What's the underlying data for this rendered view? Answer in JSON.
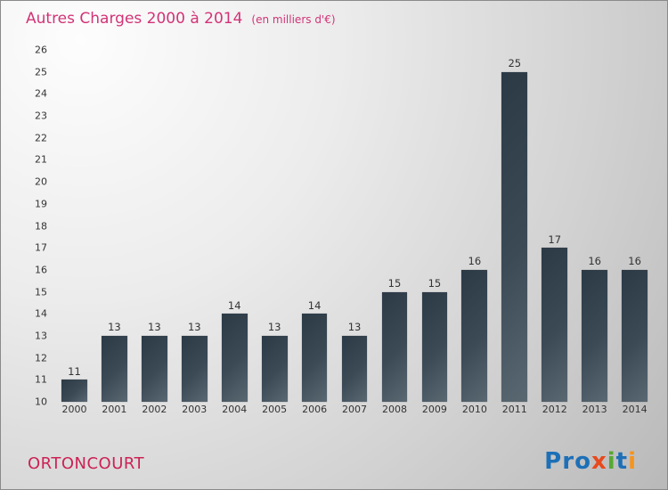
{
  "header": {
    "title": "Autres Charges 2000 à 2014",
    "subtitle": "(en milliers d'€)"
  },
  "footer": {
    "org_name": "ORTONCOURT",
    "logo_letters": [
      {
        "ch": "P",
        "color": "#1d70b7"
      },
      {
        "ch": "r",
        "color": "#1d70b7"
      },
      {
        "ch": "o",
        "color": "#1d70b7"
      },
      {
        "ch": "x",
        "color": "#e8491d"
      },
      {
        "ch": "i",
        "color": "#56a832"
      },
      {
        "ch": "t",
        "color": "#1d70b7"
      },
      {
        "ch": "i",
        "color": "#f7941d"
      }
    ]
  },
  "colors": {
    "title": "#d23377",
    "org_name": "#cc2255",
    "bar_gradient_start": "#2c3a46",
    "bar_gradient_end": "#5a6872",
    "axis_text": "#333333"
  },
  "chart_data": {
    "type": "bar",
    "title": "Autres Charges 2000 à 2014",
    "subtitle": "(en milliers d'€)",
    "categories": [
      "2000",
      "2001",
      "2002",
      "2003",
      "2004",
      "2005",
      "2006",
      "2007",
      "2008",
      "2009",
      "2010",
      "2011",
      "2012",
      "2013",
      "2014"
    ],
    "values": [
      11,
      13,
      13,
      13,
      14,
      13,
      14,
      13,
      15,
      15,
      16,
      25,
      17,
      16,
      16
    ],
    "xlabel": "",
    "ylabel": "",
    "ylim": [
      10,
      26
    ],
    "ytick_step": 1,
    "grid": false,
    "legend": false,
    "bar_labels": true
  }
}
